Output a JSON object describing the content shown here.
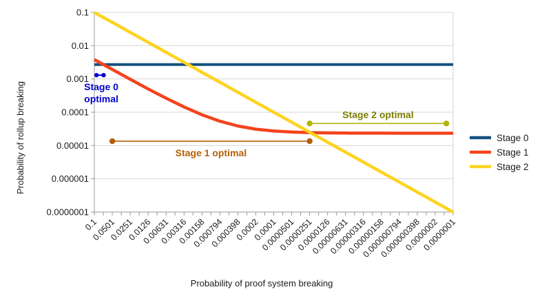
{
  "chart_data": {
    "type": "line",
    "title": "",
    "xlabel": "Probability of proof system breaking",
    "ylabel": "Probability of rollup breaking",
    "log_x": true,
    "log_y": true,
    "xlim": [
      0.1,
      1e-07
    ],
    "ylim": [
      0.1,
      1e-07
    ],
    "grid": "horizontal",
    "legend_position": "right",
    "y_tick_labels": [
      "0.1",
      "0.01",
      "0.001",
      "0.0001",
      "0.00001",
      "0.000001",
      "0.0000001"
    ],
    "x_tick_labels": [
      "0.1",
      "0.0501",
      "0.0251",
      "0.0126",
      "0.00631",
      "0.00316",
      "0.00158",
      "0.000794",
      "0.000398",
      "0.0002",
      "0.0001",
      "0.0000501",
      "0.0000251",
      "0.0000126",
      "0.00000631",
      "0.00000316",
      "0.00000158",
      "0.000000794",
      "0.000000398",
      "0.0000002",
      "0.0000001"
    ],
    "x": [
      0.1,
      0.0501,
      0.0251,
      0.0126,
      0.00631,
      0.00316,
      0.00158,
      0.000794,
      0.000398,
      0.0002,
      0.0001,
      5.01e-05,
      2.51e-05,
      1.26e-05,
      6.31e-06,
      3.16e-06,
      1.58e-06,
      7.94e-07,
      3.98e-07,
      2e-07,
      1e-07
    ],
    "series": [
      {
        "name": "Stage 0",
        "color": "#15507e",
        "values": [
          0.0027,
          0.0027,
          0.0027,
          0.0027,
          0.0027,
          0.0027,
          0.0027,
          0.0027,
          0.0027,
          0.0027,
          0.0027,
          0.0027,
          0.0027,
          0.0027,
          0.0027,
          0.0027,
          0.0027,
          0.0027,
          0.0027,
          0.0027,
          0.0027
        ]
      },
      {
        "name": "Stage 1",
        "color": "#f4431c",
        "values": [
          0.00383,
          0.00193,
          0.00098,
          0.0005,
          0.000264,
          0.000144,
          8.36e-05,
          5.37e-05,
          3.86e-05,
          3.1e-05,
          2.72e-05,
          2.53e-05,
          2.44e-05,
          2.39e-05,
          2.36e-05,
          2.35e-05,
          2.35e-05,
          2.34e-05,
          2.34e-05,
          2.34e-05,
          2.34e-05
        ]
      },
      {
        "name": "Stage 2",
        "color": "#ffd320",
        "values": [
          0.1,
          0.0501,
          0.0251,
          0.0126,
          0.00631,
          0.00316,
          0.00158,
          0.000794,
          0.000398,
          0.0002,
          0.0001,
          5.01e-05,
          2.51e-05,
          1.26e-05,
          6.31e-06,
          3.16e-06,
          1.58e-06,
          7.94e-07,
          3.98e-07,
          2e-07,
          1e-07
        ]
      }
    ],
    "annotations": [
      {
        "name": "stage-0-optimal",
        "label_lines": [
          "Stage 0",
          "optimal"
        ],
        "x_start": 0.092,
        "x_end": 0.07,
        "y": 0.0013,
        "color": "#0000cc",
        "text_color": "#0000cc",
        "label_position": "below-start"
      },
      {
        "name": "stage-1-optimal",
        "label_lines": [
          "Stage 1 optimal"
        ],
        "x_start": 0.0501,
        "x_end": 2.51e-05,
        "y": 1.35e-05,
        "color": "#b45f06",
        "text_color": "#b45f06",
        "label_position": "below-center"
      },
      {
        "name": "stage-2-optimal",
        "label_lines": [
          "Stage 2 optimal"
        ],
        "x_start": 2.51e-05,
        "x_end": 1.3e-07,
        "y": 4.6e-05,
        "color": "#b2b200",
        "text_color": "#7d7d00",
        "label_position": "above-center"
      }
    ]
  }
}
